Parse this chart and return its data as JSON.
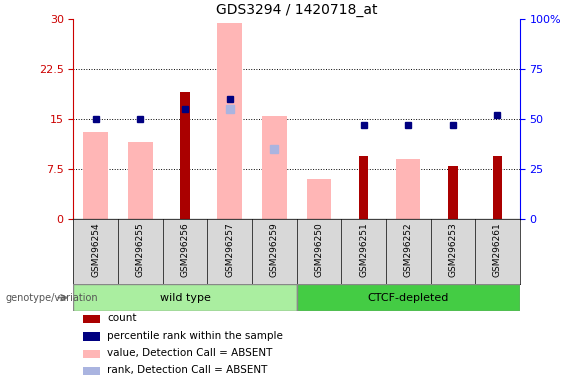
{
  "title": "GDS3294 / 1420718_at",
  "samples": [
    "GSM296254",
    "GSM296255",
    "GSM296256",
    "GSM296257",
    "GSM296259",
    "GSM296250",
    "GSM296251",
    "GSM296252",
    "GSM296253",
    "GSM296261"
  ],
  "count": [
    null,
    null,
    19.0,
    null,
    null,
    null,
    9.5,
    null,
    8.0,
    9.5
  ],
  "percentile_rank": [
    50.0,
    50.0,
    55.0,
    60.0,
    null,
    null,
    47.0,
    47.0,
    47.0,
    52.0
  ],
  "value_absent": [
    13.0,
    11.5,
    null,
    29.5,
    15.5,
    6.0,
    null,
    9.0,
    null,
    null
  ],
  "rank_absent": [
    null,
    null,
    null,
    55.0,
    35.0,
    null,
    null,
    null,
    null,
    null
  ],
  "ylim_left": [
    0,
    30
  ],
  "ylim_right": [
    0,
    100
  ],
  "yticks_left": [
    0,
    7.5,
    15.0,
    22.5,
    30
  ],
  "ytick_labels_left": [
    "0",
    "7.5",
    "15",
    "22.5",
    "30"
  ],
  "yticks_right": [
    0,
    25,
    50,
    75,
    100
  ],
  "ytick_labels_right": [
    "0",
    "25",
    "50",
    "75",
    "100%"
  ],
  "color_count": "#aa0000",
  "color_percentile": "#000080",
  "color_value_absent": "#ffb6b6",
  "color_rank_absent": "#aab4e0",
  "wt_color": "#aaeea0",
  "ctcf_color": "#44cc44",
  "bg_color": "#d8d8d8",
  "legend_items": [
    {
      "label": "count",
      "color": "#aa0000"
    },
    {
      "label": "percentile rank within the sample",
      "color": "#000080"
    },
    {
      "label": "value, Detection Call = ABSENT",
      "color": "#ffb6b6"
    },
    {
      "label": "rank, Detection Call = ABSENT",
      "color": "#aab4e0"
    }
  ]
}
